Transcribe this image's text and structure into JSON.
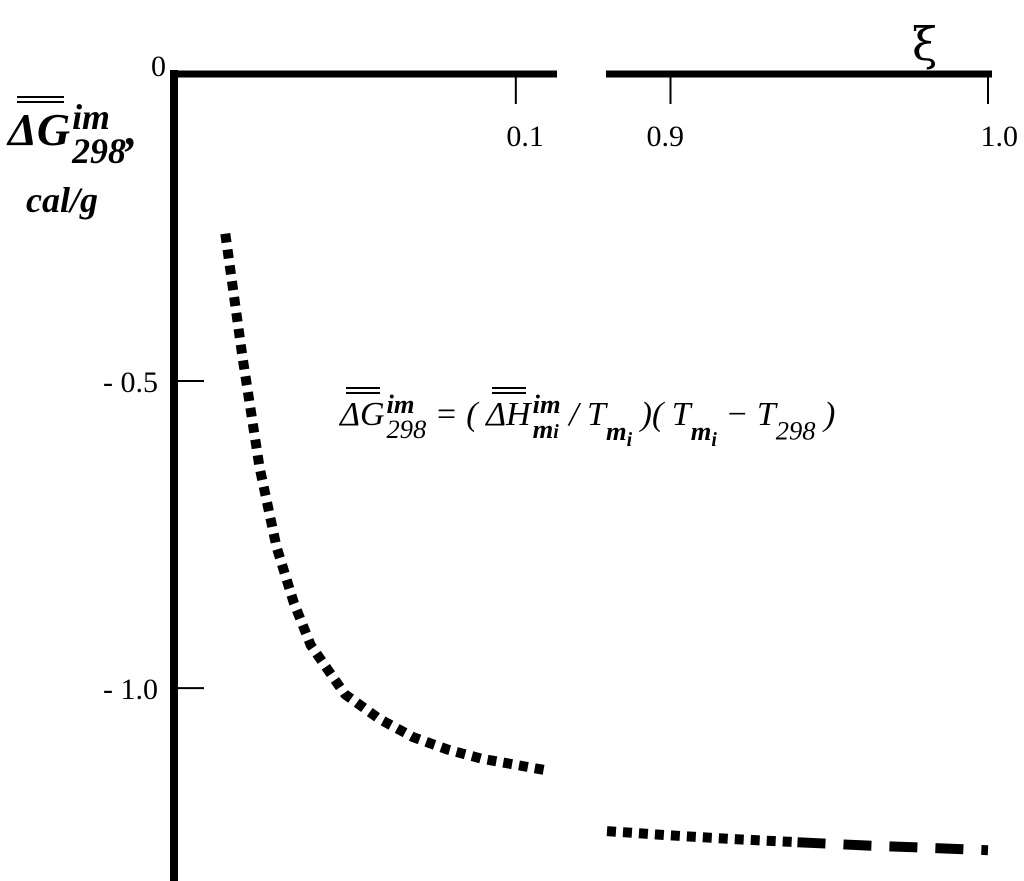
{
  "chart_data": {
    "type": "line",
    "title": "",
    "xlabel": "ξ",
    "ylabel": {
      "symbol": "ΔG",
      "superscript": "im",
      "subscript": "298",
      "separator": ",",
      "unit": "cal/g"
    },
    "x_axis": {
      "position": "top",
      "broken": true,
      "segments": [
        {
          "range": [
            0,
            0.11
          ],
          "ticks": [
            {
              "value": 0.1,
              "label": "0.1"
            }
          ]
        },
        {
          "range": [
            0.88,
            1.0
          ],
          "ticks": [
            {
              "value": 0.9,
              "label": "0.9"
            },
            {
              "value": 1.0,
              "label": "1.0"
            }
          ]
        }
      ]
    },
    "y_axis": {
      "range": [
        -1.28,
        0
      ],
      "ticks": [
        {
          "value": 0,
          "label": "0"
        },
        {
          "value": -0.5,
          "label": "- 0.5"
        },
        {
          "value": -1.0,
          "label": "- 1.0"
        }
      ]
    },
    "grid": false,
    "legend": "none",
    "series": [
      {
        "style": "dotted-heavy",
        "x": [
          0.015,
          0.02,
          0.025,
          0.03,
          0.035,
          0.04,
          0.05,
          0.06,
          0.07,
          0.08,
          0.09,
          0.1,
          0.11
        ],
        "y": [
          -0.26,
          -0.46,
          -0.64,
          -0.77,
          -0.86,
          -0.93,
          -1.01,
          -1.05,
          -1.08,
          -1.1,
          -1.115,
          -1.125,
          -1.135
        ]
      },
      {
        "style": "dotted-heavy",
        "x": [
          0.88,
          0.9,
          0.92,
          0.94
        ],
        "y": [
          -1.233,
          -1.24,
          -1.246,
          -1.251
        ]
      },
      {
        "style": "dashed",
        "x": [
          0.94,
          0.96,
          0.98,
          1.0
        ],
        "y": [
          -1.251,
          -1.256,
          -1.26,
          -1.264
        ]
      }
    ],
    "annotations": [
      {
        "id": "formula",
        "lhs_symbol": "ΔG",
        "lhs_sup": "im",
        "lhs_sub": "298",
        "equals": "=",
        "open1": "(",
        "h_symbol": "ΔH",
        "h_sup": "im",
        "h_sub": "m",
        "h_sub_sub": "i",
        "slash": "/",
        "t1": "T",
        "t1_sub": "m",
        "t1_sub_sub": "i",
        "close_open": ")(",
        "t2": "T",
        "t2_sub": "m",
        "t2_sub_sub": "i",
        "minus": "−",
        "t3": "T",
        "t3_sub": "298",
        "close2": ")"
      }
    ]
  }
}
